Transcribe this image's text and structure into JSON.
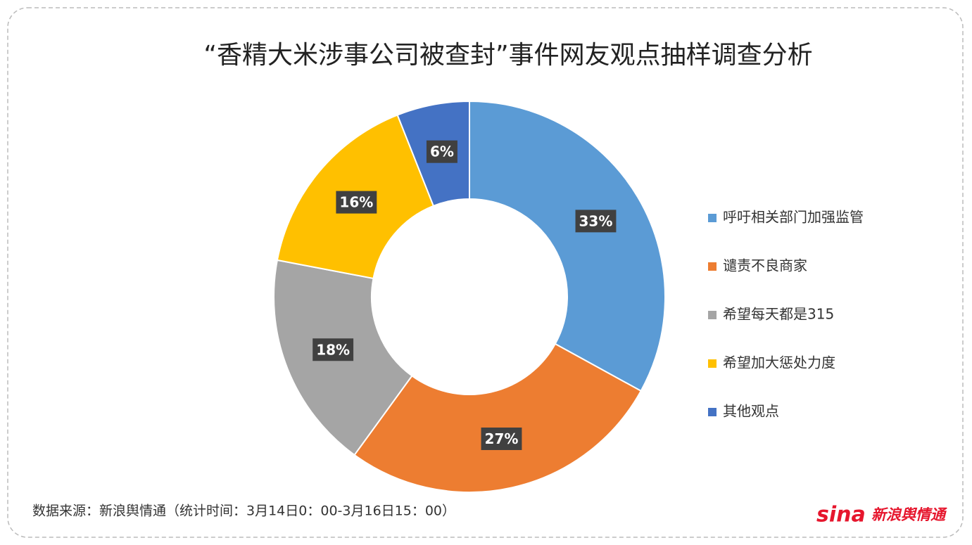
{
  "chart_data": {
    "type": "donut",
    "title": "“香精大米涉事公司被查封”事件网友观点抽样调查分析",
    "categories": [
      "呼吁相关部门加强监管",
      "谴责不良商家",
      "希望每天都是315",
      "希望加大惩处力度",
      "其他观点"
    ],
    "values": [
      33,
      27,
      18,
      16,
      6
    ],
    "value_labels": [
      "33%",
      "27%",
      "18%",
      "16%",
      "6%"
    ],
    "colors": [
      "#5b9bd5",
      "#ed7d31",
      "#a5a5a5",
      "#ffc000",
      "#4472c4"
    ],
    "legend": "right",
    "source": "数据来源：新浪舆情通（统计时间：3月14日0：00-3月16日15：00）",
    "logo": {
      "brand": "sina",
      "name": "新浪舆情通"
    }
  }
}
